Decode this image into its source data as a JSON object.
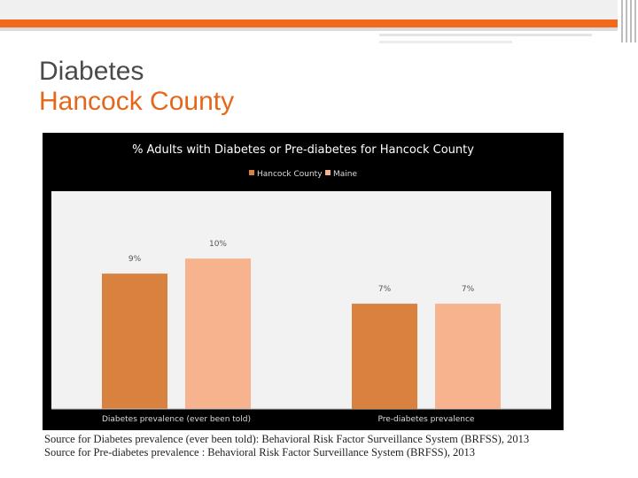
{
  "slide": {
    "title_line1": "Diabetes",
    "title_line2": "Hancock County",
    "sources": [
      "Source for Diabetes prevalence (ever been told): Behavioral Risk Factor Surveillance System (BRFSS), 2013",
      "Source for Pre-diabetes prevalence : Behavioral Risk Factor Surveillance System (BRFSS), 2013"
    ]
  },
  "colors": {
    "accent": "#f26b1d",
    "title_accent": "#e4671b",
    "series_hancock": "#d9823f",
    "series_maine": "#f6b38e",
    "chart_background": "#000000",
    "plot_background": "#f2f2f2"
  },
  "chart_data": {
    "type": "bar",
    "title": "% Adults with Diabetes or Pre-diabetes for Hancock County",
    "categories": [
      "Diabetes prevalence (ever been told)",
      "Pre-diabetes prevalence"
    ],
    "series": [
      {
        "name": "Hancock County",
        "values": [
          9,
          7
        ],
        "labels": [
          "9%",
          "7%"
        ]
      },
      {
        "name": "Maine",
        "values": [
          10,
          7
        ],
        "labels": [
          "10%",
          "7%"
        ]
      }
    ],
    "ylim": [
      0,
      12
    ],
    "grid": false,
    "legend": "top-center"
  }
}
